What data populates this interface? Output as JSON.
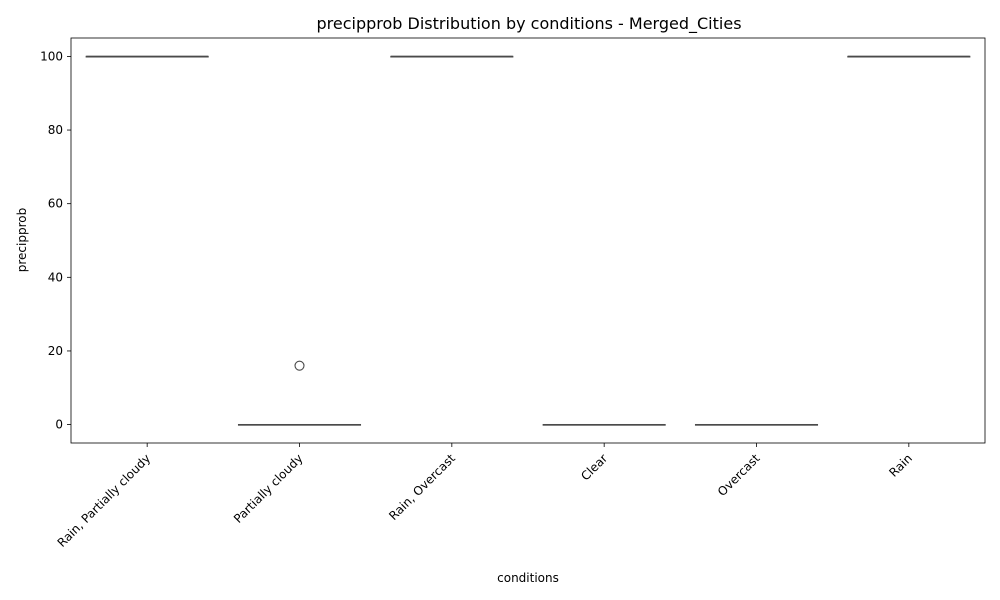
{
  "chart_data": {
    "type": "box",
    "title": "precipprob Distribution by conditions - Merged_Cities",
    "xlabel": "conditions",
    "ylabel": "precipprob",
    "categories": [
      "Rain, Partially cloudy",
      "Partially cloudy",
      "Rain, Overcast",
      "Clear",
      "Overcast",
      "Rain"
    ],
    "boxes": [
      {
        "category": "Rain, Partially cloudy",
        "min": 100,
        "q1": 100,
        "median": 100,
        "q3": 100,
        "max": 100,
        "outliers": []
      },
      {
        "category": "Partially cloudy",
        "min": 0,
        "q1": 0,
        "median": 0,
        "q3": 0,
        "max": 0,
        "outliers": [
          16
        ]
      },
      {
        "category": "Rain, Overcast",
        "min": 100,
        "q1": 100,
        "median": 100,
        "q3": 100,
        "max": 100,
        "outliers": []
      },
      {
        "category": "Clear",
        "min": 0,
        "q1": 0,
        "median": 0,
        "q3": 0,
        "max": 0,
        "outliers": []
      },
      {
        "category": "Overcast",
        "min": 0,
        "q1": 0,
        "median": 0,
        "q3": 0,
        "max": 0,
        "outliers": []
      },
      {
        "category": "Rain",
        "min": 100,
        "q1": 100,
        "median": 100,
        "q3": 100,
        "max": 100,
        "outliers": []
      }
    ],
    "ylim": [
      -5,
      105
    ],
    "yticks": [
      0,
      20,
      40,
      60,
      80,
      100
    ],
    "grid": false,
    "box_color": "#4a4a4a"
  }
}
